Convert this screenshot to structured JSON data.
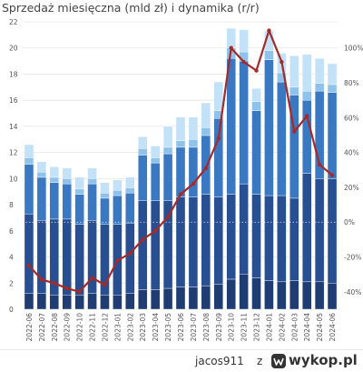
{
  "chart_data": {
    "type": "bar",
    "title": "Sprzedaż miesięczna (mld zł) i dynamika (r/r)",
    "categories": [
      "2022-06",
      "2022-07",
      "2022-08",
      "2022-09",
      "2022-10",
      "2022-11",
      "2022-12",
      "2023-01",
      "2023-02",
      "2023-03",
      "2023-04",
      "2023-05",
      "2023-06",
      "2023-07",
      "2023-08",
      "2023-09",
      "2023-10",
      "2023-11",
      "2023-12",
      "2024-01",
      "2024-02",
      "2024-03",
      "2024-04",
      "2024-05",
      "2024-06"
    ],
    "stacked": true,
    "series": [
      {
        "values": [
          1.2,
          1.2,
          1.1,
          1.1,
          1.1,
          1.2,
          1.1,
          1.1,
          1.2,
          1.5,
          1.5,
          1.6,
          1.7,
          1.7,
          1.8,
          1.9,
          2.3,
          2.7,
          2.4,
          2.2,
          2.1,
          2.2,
          2.1,
          2.1,
          2.0
        ],
        "color": "#1f3d73"
      },
      {
        "values": [
          6.1,
          5.6,
          5.8,
          5.8,
          5.4,
          5.6,
          5.4,
          5.4,
          5.4,
          6.8,
          6.8,
          6.7,
          6.9,
          6.9,
          7.0,
          6.7,
          6.5,
          6.9,
          6.4,
          6.5,
          6.6,
          6.3,
          8.3,
          7.9,
          8.0
        ],
        "color": "#274f91"
      },
      {
        "values": [
          3.8,
          3.3,
          2.8,
          2.7,
          2.3,
          2.8,
          2.0,
          2.2,
          2.3,
          3.5,
          2.9,
          3.6,
          3.8,
          3.8,
          4.5,
          6.0,
          10.4,
          9.4,
          6.4,
          10.4,
          8.7,
          7.9,
          5.6,
          6.7,
          6.6
        ],
        "color": "#3a78c2"
      },
      {
        "values": [
          0.5,
          0.4,
          0.4,
          0.4,
          0.4,
          0.4,
          0.4,
          0.4,
          0.4,
          0.5,
          0.4,
          0.5,
          0.5,
          0.6,
          0.6,
          0.6,
          0.8,
          0.7,
          0.7,
          0.7,
          0.7,
          0.6,
          0.7,
          0.6,
          0.6
        ],
        "color": "#8fc3eb"
      },
      {
        "values": [
          1.0,
          0.8,
          0.8,
          0.8,
          0.9,
          0.8,
          0.8,
          0.8,
          0.8,
          0.9,
          0.9,
          1.6,
          1.8,
          1.7,
          1.9,
          2.2,
          1.5,
          1.7,
          1.0,
          1.5,
          1.5,
          2.4,
          2.8,
          1.9,
          1.6
        ],
        "color": "#c3e1f7"
      }
    ],
    "line": {
      "values": [
        -25,
        -33,
        -35,
        -38,
        -40,
        -32,
        -36,
        -22,
        -18,
        -10,
        -5,
        3,
        16,
        22,
        31,
        48,
        100,
        92,
        87,
        110,
        92,
        52,
        61,
        33,
        27
      ],
      "color": "#a52a2a"
    },
    "y_left": {
      "min": 0,
      "max": 22,
      "ticks": [
        "0",
        "2",
        "4",
        "6",
        "8",
        "10",
        "12",
        "14",
        "16",
        "18",
        "20",
        "22"
      ]
    },
    "y_right": {
      "min": -50,
      "max": 115,
      "ticks": [
        "-40%",
        "-20%",
        "0%",
        "20%",
        "40%",
        "60%",
        "80%",
        "100%"
      ]
    },
    "grid": true
  },
  "footer": {
    "user": "jacos911",
    "separator": "z",
    "brand": "wykop.pl"
  }
}
